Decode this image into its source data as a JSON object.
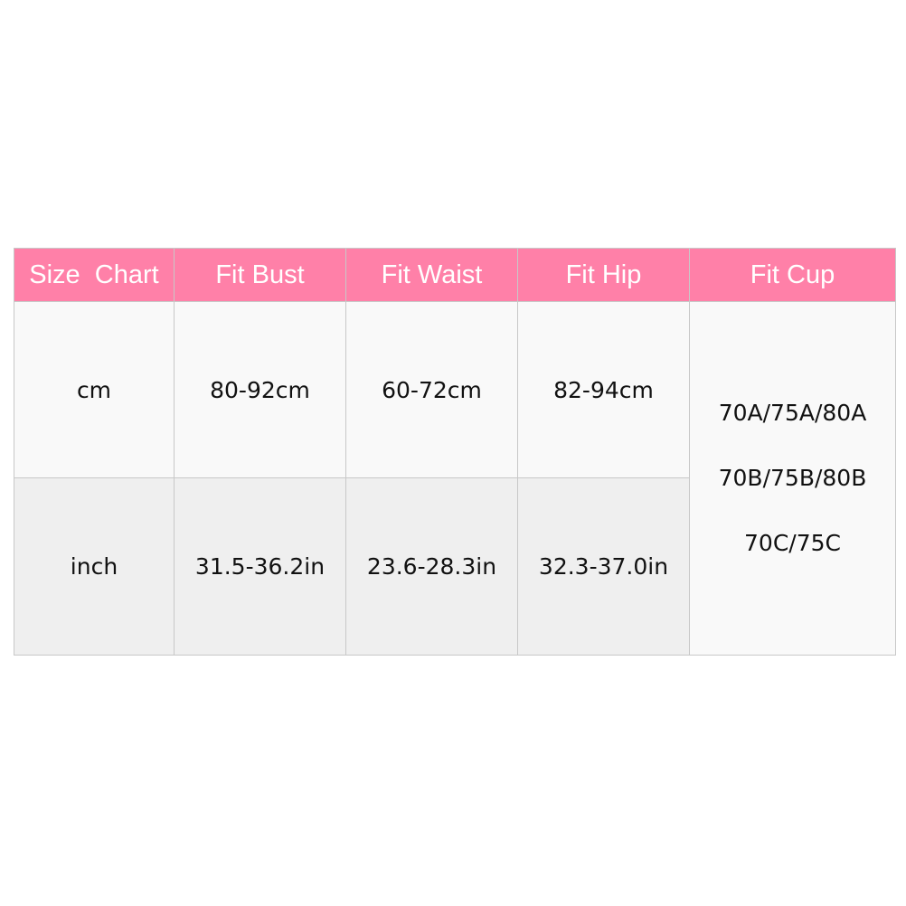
{
  "header": [
    "Size  Chart",
    "Fit Bust",
    "Fit Waist",
    "Fit Hip",
    "Fit Cup"
  ],
  "rows": [
    {
      "unit": "cm",
      "bust": "80-92cm",
      "waist": "60-72cm",
      "hip": "82-94cm"
    },
    {
      "unit": "inch",
      "bust": "31.5-36.2in",
      "waist": "23.6-28.3in",
      "hip": "32.3-37.0in"
    }
  ],
  "cup": [
    "70A/75A/80A",
    "70B/75B/80B",
    "70C/75C"
  ],
  "colors": {
    "header_bg": "#ff80a8",
    "header_text": "#ffffff",
    "row1_bg": "#f9f9f9",
    "row2_bg": "#efefef"
  }
}
